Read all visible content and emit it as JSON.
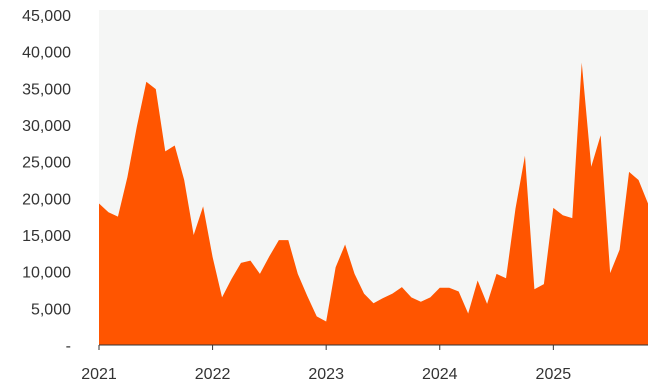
{
  "chart_data": {
    "type": "area",
    "title": "",
    "xlabel": "",
    "ylabel": "",
    "ylim": [
      0,
      45000
    ],
    "y_ticks": [
      {
        "value": 0,
        "label": "-"
      },
      {
        "value": 5000,
        "label": "5,000"
      },
      {
        "value": 10000,
        "label": "10,000"
      },
      {
        "value": 15000,
        "label": "15,000"
      },
      {
        "value": 20000,
        "label": "20,000"
      },
      {
        "value": 25000,
        "label": "25,000"
      },
      {
        "value": 30000,
        "label": "30,000"
      },
      {
        "value": 35000,
        "label": "35,000"
      },
      {
        "value": 40000,
        "label": "40,000"
      },
      {
        "value": 45000,
        "label": "45,000"
      }
    ],
    "x_ticks": [
      {
        "value": "2021-01",
        "label": "2021"
      },
      {
        "value": "2022-01",
        "label": "2022"
      },
      {
        "value": "2023-01",
        "label": "2023"
      },
      {
        "value": "2024-01",
        "label": "2024"
      },
      {
        "value": "2025-01",
        "label": "2025"
      }
    ],
    "grid": false,
    "colors": {
      "fill": "#ff5500",
      "plot_background": "#f5f6f5",
      "axis": "#333333"
    },
    "series": [
      {
        "x": [
          "2021-01",
          "2021-02",
          "2021-03",
          "2021-04",
          "2021-05",
          "2021-06",
          "2021-07",
          "2021-08",
          "2021-09",
          "2021-10",
          "2021-11",
          "2021-12",
          "2022-01",
          "2022-02",
          "2022-03",
          "2022-04",
          "2022-05",
          "2022-06",
          "2022-07",
          "2022-08",
          "2022-09",
          "2022-10",
          "2022-11",
          "2022-12",
          "2023-01",
          "2023-02",
          "2023-03",
          "2023-04",
          "2023-05",
          "2023-06",
          "2023-07",
          "2023-08",
          "2023-09",
          "2023-10",
          "2023-11",
          "2023-12",
          "2024-01",
          "2024-02",
          "2024-03",
          "2024-04",
          "2024-05",
          "2024-06",
          "2024-07",
          "2024-08",
          "2024-09",
          "2024-10",
          "2024-11",
          "2024-12",
          "2025-01",
          "2025-02",
          "2025-03",
          "2025-04",
          "2025-05",
          "2025-06",
          "2025-07",
          "2025-08",
          "2025-09",
          "2025-10",
          "2025-11"
        ],
        "values": [
          19300,
          18100,
          17500,
          22900,
          29800,
          35900,
          34900,
          26400,
          27200,
          22500,
          15000,
          18900,
          12000,
          6500,
          9000,
          11200,
          11500,
          9700,
          12100,
          14300,
          14300,
          9700,
          6700,
          3900,
          3200,
          10600,
          13700,
          9700,
          7000,
          5700,
          6400,
          7000,
          7900,
          6500,
          5900,
          6500,
          7800,
          7800,
          7300,
          4300,
          8800,
          5600,
          9700,
          9100,
          18600,
          25800,
          7600,
          8300,
          18700,
          17700,
          17300,
          38500,
          24300,
          28600,
          9800,
          13000,
          23600,
          22500,
          19300
        ]
      }
    ]
  }
}
